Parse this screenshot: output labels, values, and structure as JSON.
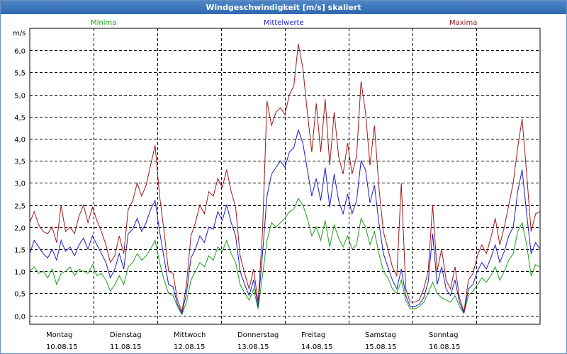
{
  "window": {
    "title": "Windgeschwindigkeit [m/s] skaliert"
  },
  "chart_data": {
    "type": "line",
    "title": "Windgeschwindigkeit [m/s] skaliert",
    "ylabel": "m/s",
    "ylim": [
      -0.2,
      6.5
    ],
    "grid": true,
    "legend_placement": "top",
    "y_ticks": [
      "0,0",
      "0,5",
      "1,0",
      "1,5",
      "2,0",
      "2,5",
      "3,0",
      "3,5",
      "4,0",
      "4,5",
      "5,0",
      "5,5",
      "6,0"
    ],
    "x_ticks": [
      {
        "day": "Montag",
        "date": "10.08.15"
      },
      {
        "day": "Dienstag",
        "date": "11.08.15"
      },
      {
        "day": "Mittwoch",
        "date": "12.08.15"
      },
      {
        "day": "Donnerstag",
        "date": "13.08.15"
      },
      {
        "day": "Freitag",
        "date": "14.08.15"
      },
      {
        "day": "Samstag",
        "date": "15.08.15"
      },
      {
        "day": "Sonntag",
        "date": "16.08.15"
      }
    ],
    "x_unit": "days",
    "x_range": [
      "10.08.15",
      "17.08.15"
    ],
    "series": [
      {
        "name": "Minima",
        "color": "#1aa01a",
        "values": [
          1.0,
          1.1,
          0.95,
          1.0,
          0.85,
          1.05,
          0.7,
          0.95,
          1.0,
          1.1,
          0.9,
          1.05,
          1.0,
          0.95,
          1.15,
          0.9,
          0.95,
          0.8,
          0.55,
          0.7,
          0.9,
          0.7,
          1.1,
          1.2,
          1.4,
          1.25,
          1.35,
          1.5,
          1.7,
          1.2,
          0.8,
          0.5,
          0.45,
          0.2,
          0.02,
          0.3,
          0.8,
          1.0,
          1.2,
          1.1,
          1.35,
          1.25,
          1.55,
          1.45,
          1.7,
          1.4,
          1.2,
          0.7,
          0.5,
          0.35,
          0.6,
          0.15,
          0.9,
          1.7,
          2.1,
          2.0,
          2.1,
          2.2,
          2.35,
          2.4,
          2.65,
          2.5,
          2.2,
          1.8,
          2.0,
          1.7,
          2.15,
          1.55,
          2.05,
          1.75,
          1.55,
          1.8,
          1.5,
          1.6,
          2.2,
          2.0,
          1.6,
          1.9,
          1.4,
          1.0,
          0.85,
          0.6,
          0.5,
          0.8,
          0.35,
          0.15,
          0.15,
          0.2,
          0.3,
          0.5,
          0.75,
          0.5,
          0.4,
          0.35,
          0.3,
          0.45,
          0.2,
          0.05,
          0.45,
          0.55,
          0.7,
          0.85,
          0.75,
          0.9,
          1.1,
          0.8,
          1.0,
          1.25,
          1.4,
          1.9,
          2.1,
          1.6,
          0.9,
          1.15,
          1.1
        ]
      },
      {
        "name": "Mittelwerte",
        "color": "#1a1acc",
        "values": [
          1.4,
          1.7,
          1.55,
          1.4,
          1.3,
          1.5,
          1.25,
          1.7,
          1.45,
          1.55,
          1.35,
          1.6,
          1.75,
          1.5,
          1.8,
          1.6,
          1.4,
          1.2,
          0.85,
          1.05,
          1.4,
          1.05,
          1.85,
          1.95,
          2.2,
          1.9,
          2.1,
          2.4,
          2.6,
          1.9,
          1.3,
          0.7,
          0.65,
          0.25,
          0.05,
          0.5,
          1.3,
          1.5,
          1.8,
          1.65,
          2.0,
          1.95,
          2.35,
          2.15,
          2.5,
          2.1,
          1.8,
          1.0,
          0.7,
          0.45,
          0.8,
          0.2,
          1.4,
          2.7,
          3.2,
          3.35,
          3.5,
          3.35,
          3.7,
          3.8,
          4.2,
          3.9,
          3.3,
          2.7,
          3.1,
          2.6,
          3.35,
          2.45,
          3.2,
          2.6,
          2.3,
          2.75,
          2.3,
          2.6,
          3.5,
          3.3,
          2.55,
          2.95,
          2.1,
          1.4,
          1.1,
          0.8,
          0.6,
          1.05,
          0.45,
          0.2,
          0.2,
          0.25,
          0.4,
          0.75,
          1.85,
          0.7,
          1.1,
          0.6,
          0.45,
          0.8,
          0.3,
          0.05,
          0.6,
          0.7,
          1.0,
          1.2,
          1.05,
          1.3,
          1.6,
          1.2,
          1.45,
          1.8,
          2.0,
          2.8,
          3.3,
          2.3,
          1.4,
          1.65,
          1.5
        ]
      },
      {
        "name": "Maxima",
        "color": "#a01818",
        "values": [
          2.1,
          2.35,
          2.05,
          1.9,
          1.85,
          2.0,
          1.65,
          2.5,
          1.9,
          2.0,
          1.85,
          2.25,
          2.5,
          2.1,
          2.45,
          2.15,
          1.9,
          1.6,
          1.2,
          1.35,
          1.8,
          1.4,
          2.4,
          2.6,
          3.0,
          2.7,
          2.95,
          3.4,
          3.85,
          2.7,
          1.9,
          1.0,
          0.95,
          0.35,
          0.08,
          0.7,
          1.8,
          2.1,
          2.5,
          2.3,
          2.8,
          2.7,
          3.1,
          2.9,
          3.3,
          2.8,
          2.45,
          1.35,
          0.95,
          0.6,
          1.05,
          0.3,
          1.9,
          4.85,
          4.3,
          4.6,
          4.7,
          4.55,
          5.0,
          5.2,
          6.15,
          5.6,
          4.6,
          3.7,
          4.8,
          3.7,
          4.9,
          3.4,
          4.6,
          3.6,
          3.2,
          3.9,
          3.2,
          3.6,
          5.3,
          4.6,
          3.4,
          4.3,
          2.9,
          1.9,
          1.5,
          1.1,
          0.9,
          3.0,
          0.6,
          0.3,
          0.3,
          0.35,
          0.6,
          1.0,
          2.5,
          1.0,
          1.5,
          0.8,
          0.6,
          1.1,
          0.4,
          0.08,
          0.8,
          0.95,
          1.35,
          1.6,
          1.4,
          1.75,
          2.2,
          1.6,
          2.0,
          2.5,
          3.0,
          3.8,
          4.45,
          3.2,
          1.9,
          2.3,
          2.35
        ]
      }
    ]
  }
}
